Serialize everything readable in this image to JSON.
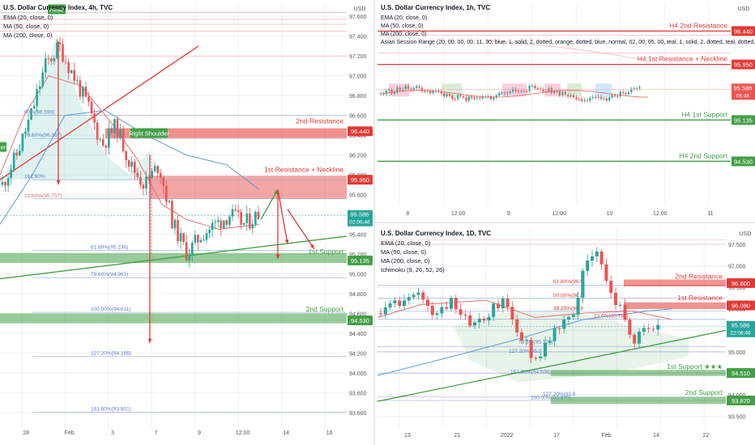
{
  "colors": {
    "up": "#26a69a",
    "down": "#ef5350",
    "resistance": "#e53935",
    "support": "#43a047",
    "ema": "#e57373",
    "ma50": "#5c9bd5",
    "grid": "#eef0f4",
    "axis": "#9aa0a6",
    "text": "#131722"
  },
  "panels": [
    {
      "id": "left",
      "title": "U.S. Dollar Currency Index, 4h, TVC",
      "indicators": [
        "EMA (20, close, 0)",
        "MA (50, close, 0)",
        "MA (200, close, 0)"
      ],
      "currency": "USD",
      "price_ticks": [
        "97.600",
        "97.400",
        "97.200",
        "97.000",
        "96.800",
        "96.600",
        "96.400",
        "96.200",
        "96.000",
        "95.800",
        "95.600",
        "95.400",
        "95.200",
        "95.000",
        "94.800",
        "94.600",
        "94.400",
        "94.200",
        "94.000",
        "93.800",
        "93.600"
      ],
      "time_ticks": [
        "28",
        "Feb",
        "3",
        "7",
        "9",
        "12:00",
        "14",
        "16"
      ],
      "levels": [
        {
          "label": "2nd Resistance",
          "value": "96.440",
          "kind": "resistance"
        },
        {
          "label": "1st Resistance + Neckline",
          "value": "95.950",
          "kind": "resistance"
        },
        {
          "label": "1st Support",
          "value": "95.135",
          "kind": "support"
        },
        {
          "label": "2nd Support",
          "value": "94.530",
          "kind": "support"
        }
      ],
      "last_price": "95.586",
      "countdown": "02:06:46",
      "fib": [
        "60%(96.599)",
        "78.60%(96.367)",
        "161.80%",
        "23.60%(95.757)",
        "61.80%(95.236)",
        "78.60%(94.961)",
        "100.00%(94.611)",
        "127.20%(94.166)",
        "161.80%(93.601)"
      ],
      "pattern_labels": {
        "head": "Head",
        "right_shoulder": "Right Shoulder",
        "left_shoulder": "er"
      }
    },
    {
      "id": "top-right",
      "title": "U.S. Dollar Currency Index, 1h, TVC",
      "indicators": [
        "EMA (20, close, 0)",
        "MA (50, close, 0)",
        "MA (200, close, 0)",
        "Asian Session Range (20, 00, 00, 00, 11, 30, blue, 1, solid, 2, dotted, orange, dotted, blue, normal, 02, 00, 05, 00, teal, 1, solid, 2, dotted, teal, dotted,"
      ],
      "currency": "USD",
      "time_ticks": [
        "8",
        "12:00",
        "9",
        "12:00",
        "10",
        "12:00",
        "11"
      ],
      "levels": [
        {
          "label": "H4 2nd Resistance",
          "value": "96.440",
          "kind": "resistance"
        },
        {
          "label": "H4 1st Resistance + Neckline",
          "value": "95.950",
          "kind": "resistance"
        },
        {
          "label": "H4 1st Support",
          "value": "95.135",
          "kind": "support"
        },
        {
          "label": "H4 2nd Support",
          "value": "94.530",
          "kind": "support"
        }
      ],
      "last_price": "95.586",
      "countdown": "06:46"
    },
    {
      "id": "bottom-right",
      "title": "U.S. Dollar Currency Index, 1D, TVC",
      "indicators": [
        "EMA (20, close, 0)",
        "MA (50, close, 0)",
        "MA (200, close, 0)",
        "Ichimoku (9, 26, 52, 26)"
      ],
      "currency": "USD",
      "price_ticks": [
        "97.500",
        "97.000",
        "96.500",
        "96.000",
        "95.500",
        "95.000",
        "94.500",
        "94.000",
        "93.500"
      ],
      "time_ticks": [
        "13",
        "21",
        "2022",
        "17",
        "Feb",
        "14",
        "22"
      ],
      "levels": [
        {
          "label": "2nd Resistance",
          "value": "96.600",
          "kind": "resistance"
        },
        {
          "label": "1st Resistance",
          "value": "96.080",
          "kind": "resistance"
        },
        {
          "label": "1st Support ★★★",
          "value": "94.510",
          "kind": "support"
        },
        {
          "label": "2nd Support",
          "value": "93.870",
          "kind": "support"
        }
      ],
      "last_price": "95.586",
      "countdown": "22:06:46",
      "fib": [
        "61.80%(96.5",
        "50.00%(96.2",
        "38.20%(95.9",
        "23.6%(95.757)",
        "78.6%(95.127)",
        "127.20%(95.0",
        "161.80%(94.508)",
        "127.20%(93.8",
        "200.00%(93.870)"
      ]
    }
  ],
  "chart_data": [
    {
      "type": "candlestick",
      "title": "U.S. Dollar Currency Index, 4h, TVC",
      "ylim": [
        93.5,
        97.7
      ],
      "x": [
        "28",
        "Feb",
        "3",
        "7",
        "9",
        "12:00",
        "14",
        "16"
      ],
      "close_path": [
        95.9,
        96.2,
        96.6,
        97.1,
        97.3,
        97.0,
        96.7,
        96.3,
        96.5,
        96.1,
        95.9,
        96.1,
        95.5,
        95.2,
        95.4,
        95.5,
        95.6,
        95.5,
        95.6
      ],
      "levels": [
        96.44,
        95.95,
        95.135,
        94.53
      ]
    },
    {
      "type": "candlestick",
      "title": "U.S. Dollar Currency Index, 1h, TVC",
      "ylim": [
        94.0,
        96.8
      ],
      "x": [
        "8",
        "12:00",
        "9",
        "12:00",
        "10",
        "12:00",
        "11"
      ],
      "levels": [
        96.44,
        95.95,
        95.135,
        94.53
      ]
    },
    {
      "type": "candlestick",
      "title": "U.S. Dollar Currency Index, 1D, TVC",
      "ylim": [
        93.4,
        97.8
      ],
      "x": [
        "13",
        "21",
        "2022",
        "17",
        "Feb",
        "14",
        "22"
      ],
      "levels": [
        96.6,
        96.08,
        94.51,
        93.87
      ]
    }
  ]
}
